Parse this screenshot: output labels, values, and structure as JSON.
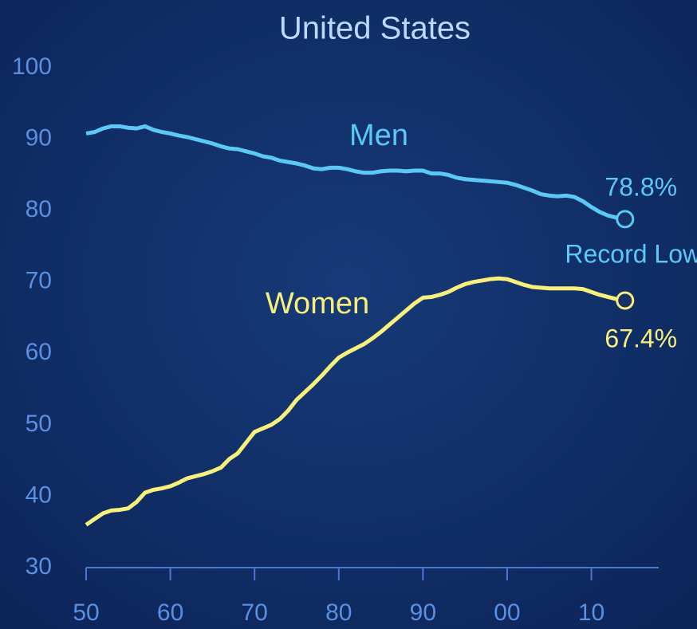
{
  "chart_data": {
    "type": "line",
    "title": "United States",
    "x": [
      1950,
      1951,
      1952,
      1953,
      1954,
      1955,
      1956,
      1957,
      1958,
      1959,
      1960,
      1961,
      1962,
      1963,
      1964,
      1965,
      1966,
      1967,
      1968,
      1969,
      1970,
      1971,
      1972,
      1973,
      1974,
      1975,
      1976,
      1977,
      1978,
      1979,
      1980,
      1981,
      1982,
      1983,
      1984,
      1985,
      1986,
      1987,
      1988,
      1989,
      1990,
      1991,
      1992,
      1993,
      1994,
      1995,
      1996,
      1997,
      1998,
      1999,
      2000,
      2001,
      2002,
      2003,
      2004,
      2005,
      2006,
      2007,
      2008,
      2009,
      2010,
      2011,
      2012,
      2013,
      2014
    ],
    "series": [
      {
        "name": "Men",
        "color": "#5cc8f5",
        "end_label": "78.8%",
        "note": "Record Low",
        "values": [
          90.8,
          91,
          91.5,
          91.8,
          91.8,
          91.6,
          91.5,
          91.8,
          91.3,
          91,
          90.8,
          90.5,
          90.3,
          90,
          89.7,
          89.4,
          89,
          88.7,
          88.6,
          88.3,
          88,
          87.6,
          87.4,
          87,
          86.8,
          86.6,
          86.3,
          85.9,
          85.8,
          86,
          86,
          85.8,
          85.5,
          85.3,
          85.3,
          85.5,
          85.6,
          85.6,
          85.5,
          85.6,
          85.6,
          85.2,
          85.2,
          85,
          84.6,
          84.4,
          84.3,
          84.2,
          84.1,
          84,
          83.9,
          83.6,
          83.2,
          82.8,
          82.3,
          82.1,
          82,
          82.1,
          81.9,
          81.3,
          80.5,
          79.8,
          79.3,
          79,
          78.8
        ]
      },
      {
        "name": "Women",
        "color": "#f7f07a",
        "end_label": "67.4%",
        "values": [
          36,
          36.8,
          37.6,
          38,
          38.1,
          38.3,
          39.2,
          40.5,
          40.9,
          41.1,
          41.4,
          41.9,
          42.5,
          42.8,
          43.1,
          43.5,
          44,
          45.2,
          46,
          47.5,
          49,
          49.5,
          50,
          50.8,
          52,
          53.5,
          54.6,
          55.7,
          56.9,
          58.2,
          59.4,
          60.1,
          60.7,
          61.3,
          62.1,
          63,
          64,
          65,
          66,
          67,
          67.8,
          67.9,
          68.2,
          68.6,
          69.2,
          69.7,
          70,
          70.2,
          70.4,
          70.5,
          70.4,
          70,
          69.6,
          69.3,
          69.2,
          69.1,
          69.1,
          69.1,
          69.1,
          69,
          68.6,
          68.2,
          67.9,
          67.6,
          67.4
        ]
      }
    ],
    "xlim": [
      1950,
      2018
    ],
    "ylim": [
      30,
      100
    ],
    "xticks": [
      {
        "value": 1950,
        "label": "50"
      },
      {
        "value": 1960,
        "label": "60"
      },
      {
        "value": 1970,
        "label": "70"
      },
      {
        "value": 1980,
        "label": "80"
      },
      {
        "value": 1990,
        "label": "90"
      },
      {
        "value": 2000,
        "label": "00"
      },
      {
        "value": 2010,
        "label": "10"
      }
    ],
    "yticks": [
      30,
      40,
      50,
      60,
      70,
      80,
      90,
      100
    ]
  }
}
